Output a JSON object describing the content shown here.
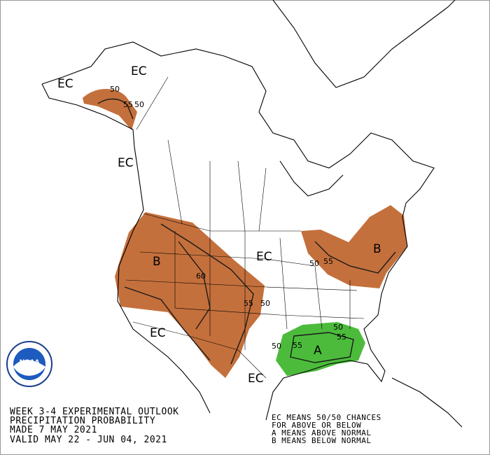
{
  "map": {
    "region_labels": [
      "EC",
      "EC",
      "EC",
      "EC",
      "EC",
      "EC",
      "B",
      "B",
      "A"
    ],
    "contour_labels": [
      "50",
      "55",
      "50",
      "60",
      "55",
      "50",
      "50",
      "55",
      "50",
      "55",
      "50",
      "55"
    ]
  },
  "logo": "NOAA",
  "legend": {
    "lines": [
      "WEEK 3-4 EXPERIMENTAL OUTLOOK",
      "PRECIPITATION PROBABILITY",
      "MADE  7 MAY 2021",
      "VALID  MAY 22 - JUN 04, 2021"
    ]
  },
  "key": {
    "lines": [
      "EC MEANS 50/50 CHANCES",
      "FOR ABOVE OR BELOW",
      "A MEANS ABOVE NORMAL",
      "B MEANS BELOW NORMAL"
    ]
  }
}
